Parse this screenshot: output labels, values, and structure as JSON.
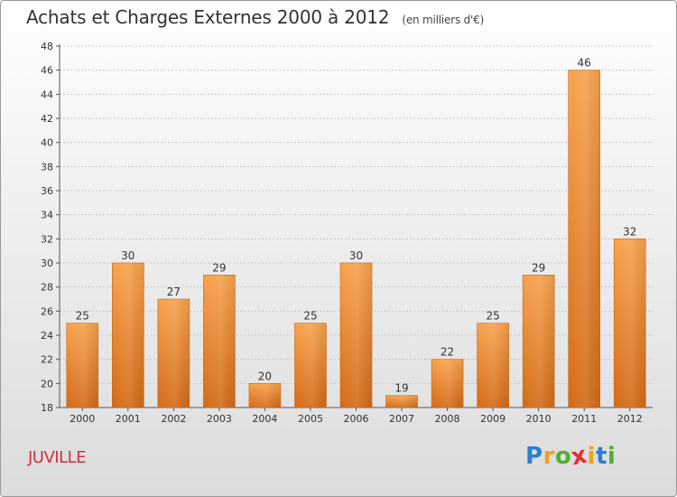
{
  "chart_data": {
    "type": "bar",
    "title": "Achats et Charges Externes 2000 à 2012",
    "subtitle": "(en milliers d'€)",
    "categories": [
      "2000",
      "2001",
      "2002",
      "2003",
      "2004",
      "2005",
      "2006",
      "2007",
      "2008",
      "2009",
      "2010",
      "2011",
      "2012"
    ],
    "values": [
      25,
      30,
      27,
      29,
      20,
      25,
      30,
      19,
      22,
      25,
      29,
      46,
      32
    ],
    "ylim": [
      18,
      48
    ],
    "yticks": [
      18,
      20,
      22,
      24,
      26,
      28,
      30,
      32,
      34,
      36,
      38,
      40,
      42,
      44,
      46,
      48
    ],
    "grid": true,
    "bar_color": "#f0903a",
    "xlabel": "",
    "ylabel": ""
  },
  "location": "JUVILLE",
  "logo": {
    "letters": [
      "P",
      "r",
      "o",
      "x",
      "i",
      "t",
      "i"
    ],
    "colors": [
      "#2a7fd0",
      "#f0a020",
      "#50b030",
      "#e03030",
      "#f0a020",
      "#2a7fd0",
      "#50b030"
    ]
  }
}
